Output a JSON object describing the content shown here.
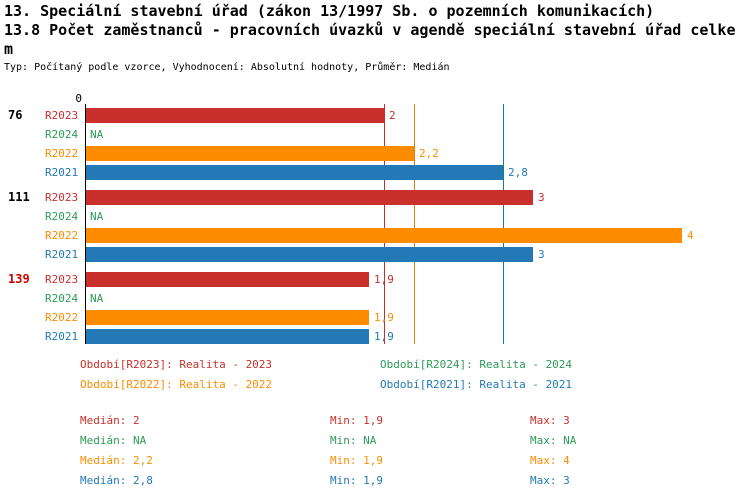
{
  "title_line1": "13. Speciální stavební úřad (zákon 13/1997 Sb. o pozemních komunikacích)",
  "title_line2": "13.8 Počet zaměstnanců - pracovních úvazků v agendě speciální stavební úřad celkem",
  "subtitle": "Typ: Počítaný podle vzorce, Vyhodnocení: Absolutní hodnoty, Průměr: Medián",
  "colors": {
    "series": {
      "R2023": "#c9302c",
      "R2024": "#2e9b57",
      "R2022": "#ff8c00",
      "R2021": "#2279b5"
    },
    "median_lines": {
      "R2023": "#c9302c",
      "R2022": "#e07f0e",
      "R2021": "#1a7f87"
    },
    "highlight_group_label": "#cc0000",
    "axis": "#000000"
  },
  "chart_data": {
    "type": "bar",
    "orientation": "horizontal",
    "x_axis": {
      "zero_label": "0",
      "min": 0,
      "max": 4
    },
    "series_order": [
      "R2023",
      "R2024",
      "R2022",
      "R2021"
    ],
    "groups": [
      {
        "label": "76",
        "label_color": "#000000",
        "bars": [
          {
            "series": "R2023",
            "value": 2,
            "display": "2"
          },
          {
            "series": "R2024",
            "value": null,
            "display": "NA"
          },
          {
            "series": "R2022",
            "value": 2.2,
            "display": "2,2"
          },
          {
            "series": "R2021",
            "value": 2.8,
            "display": "2,8"
          }
        ]
      },
      {
        "label": "111",
        "label_color": "#000000",
        "bars": [
          {
            "series": "R2023",
            "value": 3,
            "display": "3"
          },
          {
            "series": "R2024",
            "value": null,
            "display": "NA"
          },
          {
            "series": "R2022",
            "value": 4,
            "display": "4"
          },
          {
            "series": "R2021",
            "value": 3,
            "display": "3"
          }
        ]
      },
      {
        "label": "139",
        "label_color": "#cc0000",
        "bars": [
          {
            "series": "R2023",
            "value": 1.9,
            "display": "1,9"
          },
          {
            "series": "R2024",
            "value": null,
            "display": "NA"
          },
          {
            "series": "R2022",
            "value": 1.9,
            "display": "1,9"
          },
          {
            "series": "R2021",
            "value": 1.9,
            "display": "1,9"
          }
        ]
      }
    ],
    "median_lines": [
      {
        "series": "R2023",
        "value": 2
      },
      {
        "series": "R2022",
        "value": 2.2
      },
      {
        "series": "R2021",
        "value": 2.8
      }
    ]
  },
  "legend": [
    {
      "series": "R2023",
      "text": "Období[R2023]: Realita - 2023"
    },
    {
      "series": "R2024",
      "text": "Období[R2024]: Realita - 2024"
    },
    {
      "series": "R2022",
      "text": "Období[R2022]: Realita - 2022"
    },
    {
      "series": "R2021",
      "text": "Období[R2021]: Realita - 2021"
    }
  ],
  "stats": [
    {
      "series": "R2023",
      "median": "Medián: 2",
      "min": "Min: 1,9",
      "max": "Max: 3"
    },
    {
      "series": "R2024",
      "median": "Medián: NA",
      "min": "Min: NA",
      "max": "Max: NA"
    },
    {
      "series": "R2022",
      "median": "Medián: 2,2",
      "min": "Min: 1,9",
      "max": "Max: 4"
    },
    {
      "series": "R2021",
      "median": "Medián: 2,8",
      "min": "Min: 1,9",
      "max": "Max: 3"
    }
  ]
}
